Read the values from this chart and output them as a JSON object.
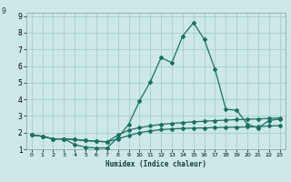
{
  "xlabel": "Humidex (Indice chaleur)",
  "bg_color": "#cce8e8",
  "grid_color": "#aacccc",
  "line_color": "#1a7060",
  "xlim": [
    -0.5,
    23.5
  ],
  "ylim": [
    1.0,
    9.2
  ],
  "xticks": [
    0,
    1,
    2,
    3,
    4,
    5,
    6,
    7,
    8,
    9,
    10,
    11,
    12,
    13,
    14,
    15,
    16,
    17,
    18,
    19,
    20,
    21,
    22,
    23
  ],
  "yticks": [
    1,
    2,
    3,
    4,
    5,
    6,
    7,
    8,
    9
  ],
  "curve1_x": [
    0,
    1,
    2,
    3,
    4,
    5,
    6,
    7,
    8,
    9,
    10,
    11,
    12,
    13,
    14,
    15,
    16,
    17,
    18,
    19,
    20,
    21,
    22,
    23
  ],
  "curve1_y": [
    1.85,
    1.78,
    1.62,
    1.62,
    1.58,
    1.52,
    1.48,
    1.45,
    1.62,
    1.82,
    2.0,
    2.1,
    2.18,
    2.22,
    2.25,
    2.27,
    2.28,
    2.3,
    2.32,
    2.33,
    2.34,
    2.35,
    2.4,
    2.42
  ],
  "curve2_x": [
    0,
    1,
    2,
    3,
    4,
    5,
    6,
    7,
    8,
    9,
    10,
    11,
    12,
    13,
    14,
    15,
    16,
    17,
    18,
    19,
    20,
    21,
    22,
    23
  ],
  "curve2_y": [
    1.85,
    1.78,
    1.62,
    1.62,
    1.58,
    1.52,
    1.48,
    1.45,
    1.85,
    2.15,
    2.3,
    2.4,
    2.5,
    2.55,
    2.6,
    2.65,
    2.68,
    2.72,
    2.75,
    2.78,
    2.8,
    2.82,
    2.85,
    2.88
  ],
  "curve3_x": [
    0,
    1,
    2,
    3,
    4,
    5,
    6,
    7,
    8,
    9,
    10,
    11,
    12,
    13,
    14,
    15,
    16,
    17,
    18,
    19,
    20,
    21,
    22,
    23
  ],
  "curve3_y": [
    1.85,
    1.78,
    1.62,
    1.62,
    1.28,
    1.12,
    1.08,
    1.08,
    1.7,
    2.5,
    3.9,
    5.05,
    6.5,
    6.2,
    7.8,
    8.6,
    7.6,
    5.8,
    3.4,
    3.35,
    2.5,
    2.28,
    2.72,
    2.82
  ]
}
